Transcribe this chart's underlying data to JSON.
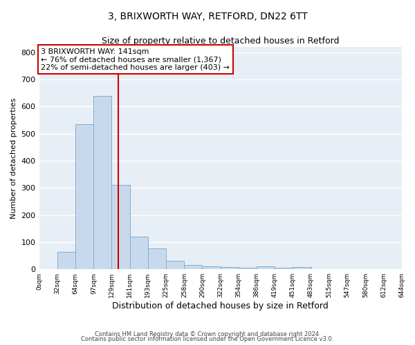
{
  "title_line1": "3, BRIXWORTH WAY, RETFORD, DN22 6TT",
  "title_line2": "Size of property relative to detached houses in Retford",
  "xlabel": "Distribution of detached houses by size in Retford",
  "ylabel": "Number of detached properties",
  "bar_edges": [
    0,
    32,
    64,
    97,
    129,
    161,
    193,
    225,
    258,
    290,
    322,
    354,
    386,
    419,
    451,
    483,
    515,
    547,
    580,
    612,
    644
  ],
  "bar_heights": [
    0,
    65,
    535,
    640,
    310,
    120,
    77,
    30,
    15,
    10,
    8,
    5,
    10,
    5,
    8,
    0,
    0,
    0,
    0,
    0
  ],
  "bar_color": "#c9d9ec",
  "bar_edge_color": "#7bafd4",
  "property_size": 141,
  "vline_color": "#cc0000",
  "annotation_text": "3 BRIXWORTH WAY: 141sqm\n← 76% of detached houses are smaller (1,367)\n22% of semi-detached houses are larger (403) →",
  "annotation_box_color": "#cc0000",
  "ylim": [
    0,
    820
  ],
  "yticks": [
    0,
    100,
    200,
    300,
    400,
    500,
    600,
    700,
    800
  ],
  "plot_bg_color": "#e8eef5",
  "fig_bg_color": "#ffffff",
  "grid_color": "#ffffff",
  "footer_line1": "Contains HM Land Registry data © Crown copyright and database right 2024.",
  "footer_line2": "Contains public sector information licensed under the Open Government Licence v3.0."
}
